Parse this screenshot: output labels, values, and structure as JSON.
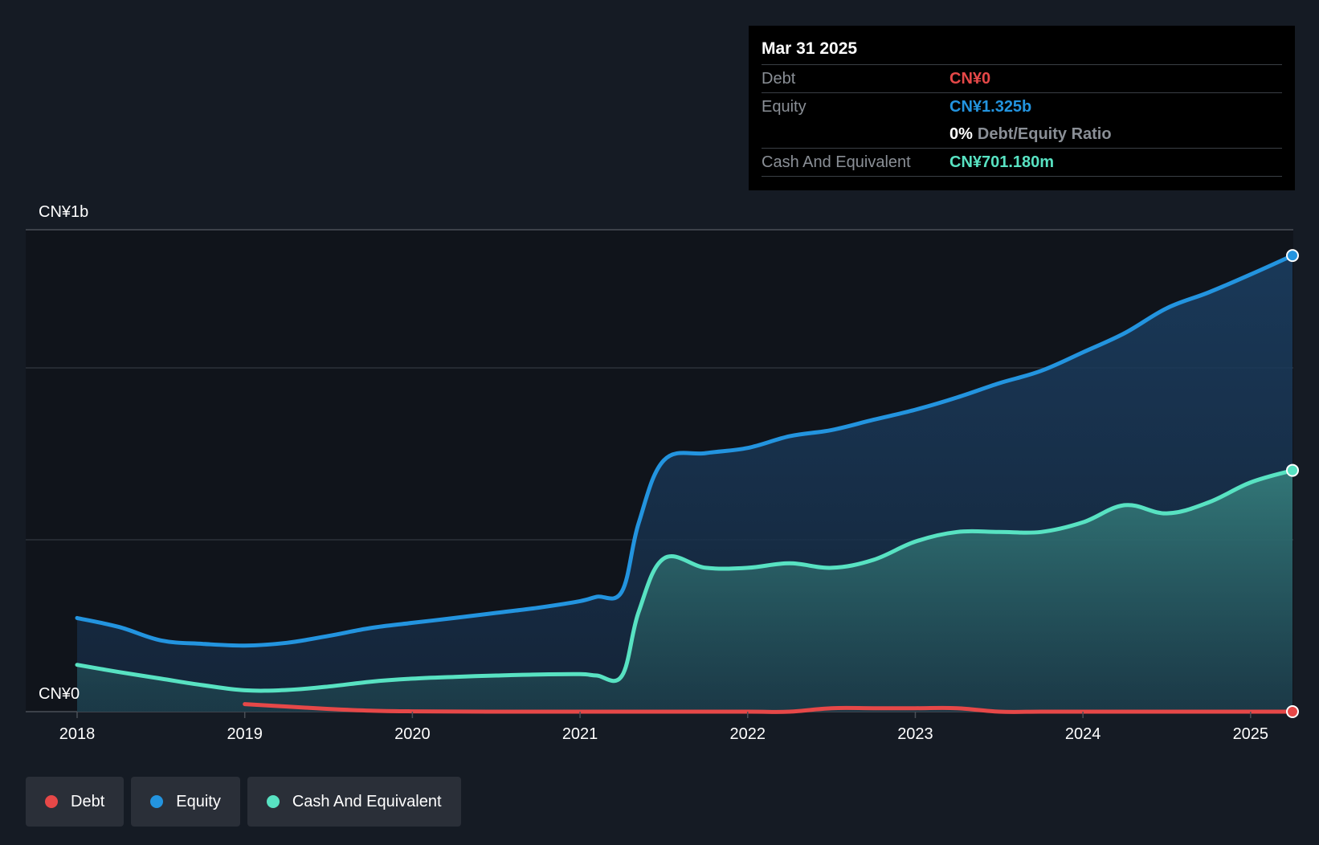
{
  "chart_data": {
    "type": "area",
    "y_axis_top_label": "CN¥1b",
    "y_axis_bottom_label": "CN¥0",
    "ylim": [
      0,
      1400
    ],
    "x_ticks": [
      "2018",
      "2019",
      "2020",
      "2021",
      "2022",
      "2023",
      "2024",
      "2025"
    ],
    "x_tick_values": [
      2018,
      2019,
      2020,
      2021,
      2022,
      2023,
      2024,
      2025
    ],
    "xlim": [
      2018,
      2025.25
    ],
    "series": [
      {
        "name": "Equity",
        "color": "#2394df",
        "x": [
          2018.0,
          2018.25,
          2018.5,
          2018.75,
          2019.0,
          2019.25,
          2019.5,
          2019.75,
          2020.0,
          2020.25,
          2020.5,
          2020.75,
          2021.0,
          2021.1,
          2021.25,
          2021.35,
          2021.5,
          2021.75,
          2022.0,
          2022.25,
          2022.5,
          2022.75,
          2023.0,
          2023.25,
          2023.5,
          2023.75,
          2024.0,
          2024.25,
          2024.5,
          2024.75,
          2025.0,
          2025.25
        ],
        "values": [
          272,
          246,
          207,
          197,
          192,
          200,
          220,
          243,
          258,
          272,
          287,
          302,
          321,
          334,
          349,
          548,
          730,
          751,
          766,
          800,
          818,
          848,
          877,
          913,
          954,
          990,
          1044,
          1100,
          1172,
          1218,
          1270,
          1325
        ]
      },
      {
        "name": "Cash And Equivalent",
        "color": "#58e2c2",
        "x": [
          2018.0,
          2018.25,
          2018.5,
          2018.75,
          2019.0,
          2019.25,
          2019.5,
          2019.75,
          2020.0,
          2020.25,
          2020.5,
          2020.75,
          2021.0,
          2021.1,
          2021.25,
          2021.35,
          2021.5,
          2021.75,
          2022.0,
          2022.25,
          2022.5,
          2022.75,
          2023.0,
          2023.25,
          2023.5,
          2023.75,
          2024.0,
          2024.25,
          2024.5,
          2024.75,
          2025.0,
          2025.25
        ],
        "values": [
          136,
          115,
          96,
          77,
          62,
          63,
          73,
          87,
          96,
          101,
          105,
          108,
          109,
          105,
          104,
          290,
          445,
          418,
          418,
          431,
          418,
          441,
          494,
          522,
          522,
          522,
          550,
          600,
          576,
          608,
          666,
          701
        ]
      },
      {
        "name": "Debt",
        "color": "#e64848",
        "x": [
          2019.0,
          2019.25,
          2019.5,
          2019.75,
          2020.0,
          2020.5,
          2021.0,
          2021.5,
          2022.0,
          2022.25,
          2022.5,
          2022.75,
          2023.0,
          2023.25,
          2023.5,
          2023.75,
          2024.0,
          2024.5,
          2025.0,
          2025.25
        ],
        "values": [
          22,
          15,
          8,
          3,
          1,
          0,
          0,
          0,
          0,
          0,
          10,
          10,
          10,
          10,
          0,
          0,
          0,
          0,
          0,
          0
        ]
      }
    ]
  },
  "tooltip": {
    "date": "Mar 31 2025",
    "debt_label": "Debt",
    "debt_value": "CN¥0",
    "equity_label": "Equity",
    "equity_value": "CN¥1.325b",
    "ratio_value": "0%",
    "ratio_label": "Debt/Equity Ratio",
    "cash_label": "Cash And Equivalent",
    "cash_value": "CN¥701.180m"
  },
  "legend": [
    {
      "label": "Debt",
      "color": "#e64848"
    },
    {
      "label": "Equity",
      "color": "#2394df"
    },
    {
      "label": "Cash And Equivalent",
      "color": "#58e2c2"
    }
  ],
  "colors": {
    "background": "#151b24",
    "plot_background": "#10141b",
    "grid": "#2c323b",
    "debt": "#e64848",
    "equity": "#2394df",
    "cash": "#58e2c2"
  }
}
